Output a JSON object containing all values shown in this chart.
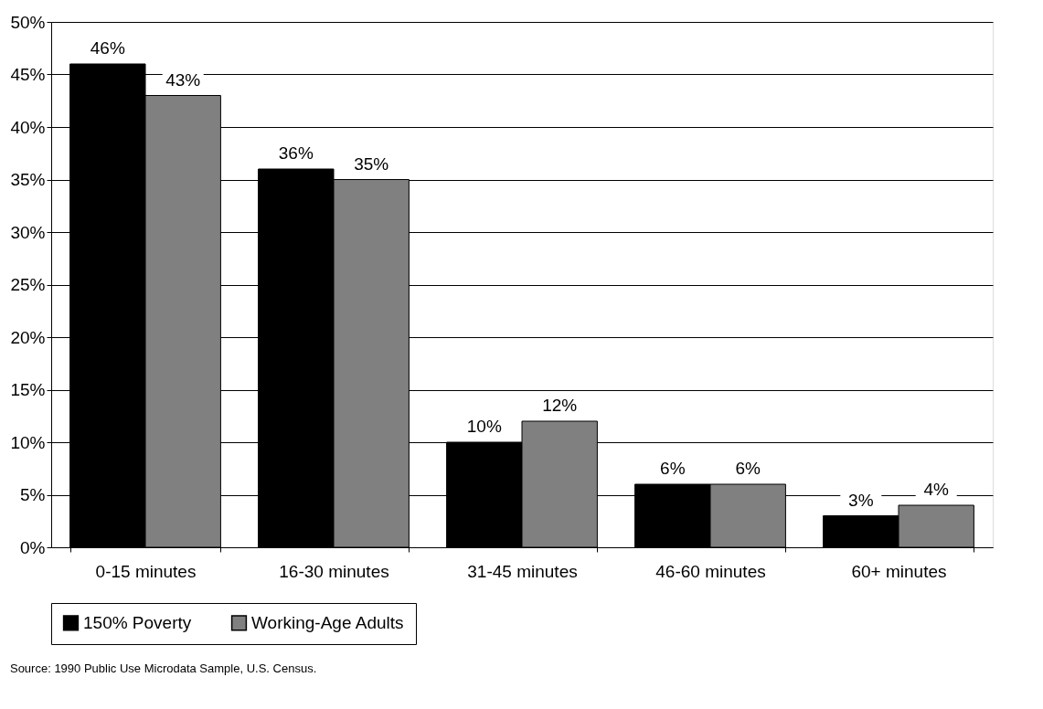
{
  "chart_data": {
    "type": "bar",
    "categories": [
      "0-15 minutes",
      "16-30 minutes",
      "31-45 minutes",
      "46-60 minutes",
      "60+ minutes"
    ],
    "series": [
      {
        "name": "150% Poverty",
        "color": "#000000",
        "values": [
          46,
          36,
          10,
          6,
          3
        ],
        "value_labels": [
          "46%",
          "36%",
          "10%",
          "6%",
          "3%"
        ]
      },
      {
        "name": "Working-Age Adults",
        "color": "#808080",
        "values": [
          43,
          35,
          12,
          6,
          4
        ],
        "value_labels": [
          "43%",
          "35%",
          "12%",
          "6%",
          "4%"
        ]
      }
    ],
    "ylim": [
      0,
      50
    ],
    "yticks": [
      {
        "value": 0,
        "label": "0%"
      },
      {
        "value": 5,
        "label": "5%"
      },
      {
        "value": 10,
        "label": "10%"
      },
      {
        "value": 15,
        "label": "15%"
      },
      {
        "value": 20,
        "label": "20%"
      },
      {
        "value": 25,
        "label": "25%"
      },
      {
        "value": 30,
        "label": "30%"
      },
      {
        "value": 35,
        "label": "35%"
      },
      {
        "value": 40,
        "label": "40%"
      },
      {
        "value": 45,
        "label": "45%"
      },
      {
        "value": 50,
        "label": "50%"
      }
    ],
    "grid": "y",
    "legend": "bottom",
    "annotations": [
      "Source:  1990 Public Use Microdata Sample, U.S. Census."
    ]
  }
}
